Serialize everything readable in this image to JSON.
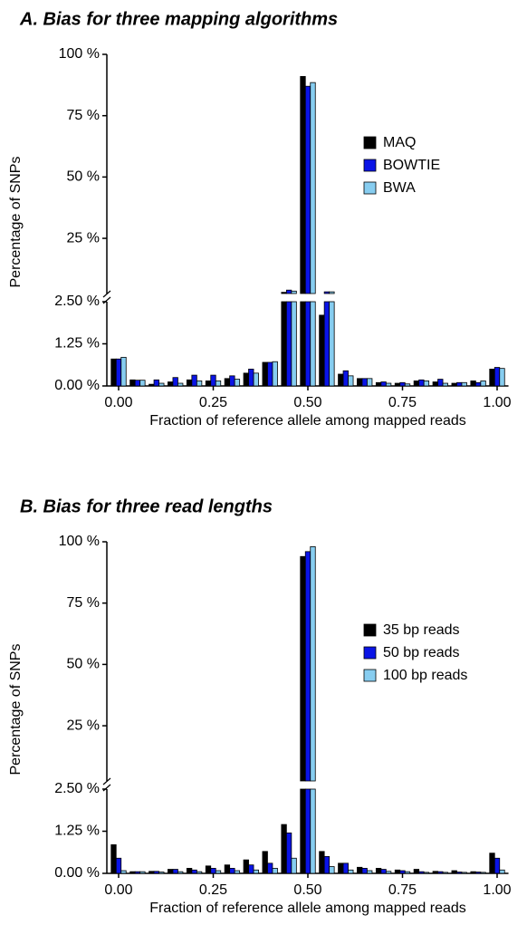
{
  "chart_data": [
    {
      "type": "bar",
      "title": "A. Bias for three mapping algorithms",
      "xlabel": "Fraction of reference allele among mapped reads",
      "ylabel": "Percentage of SNPs",
      "x": [
        0,
        0.05,
        0.1,
        0.15,
        0.2,
        0.25,
        0.3,
        0.35,
        0.4,
        0.45,
        0.5,
        0.55,
        0.6,
        0.65,
        0.7,
        0.75,
        0.8,
        0.85,
        0.9,
        0.95,
        1
      ],
      "series": [
        {
          "name": "MAQ",
          "color": "#000000",
          "values": [
            0.8,
            0.18,
            0.05,
            0.12,
            0.18,
            0.15,
            0.22,
            0.38,
            0.7,
            3.0,
            91,
            2.1,
            0.35,
            0.22,
            0.1,
            0.08,
            0.15,
            0.12,
            0.08,
            0.15,
            0.5
          ]
        },
        {
          "name": "BOWTIE",
          "color": "#0a14e6",
          "values": [
            0.8,
            0.17,
            0.18,
            0.25,
            0.32,
            0.32,
            0.3,
            0.5,
            0.7,
            3.9,
            87,
            3.2,
            0.45,
            0.22,
            0.12,
            0.1,
            0.18,
            0.2,
            0.1,
            0.1,
            0.55
          ]
        },
        {
          "name": "BWA",
          "color": "#87cdf0",
          "values": [
            0.85,
            0.17,
            0.08,
            0.08,
            0.15,
            0.15,
            0.2,
            0.38,
            0.72,
            3.5,
            88.5,
            3.2,
            0.3,
            0.22,
            0.08,
            0.06,
            0.15,
            0.08,
            0.1,
            0.15,
            0.52
          ]
        }
      ],
      "xlim": [
        -0.03,
        1.03
      ],
      "xticks": [
        {
          "value": 0,
          "label": "0.00"
        },
        {
          "value": 0.25,
          "label": "0.25"
        },
        {
          "value": 0.5,
          "label": "0.50"
        },
        {
          "value": 0.75,
          "label": "0.75"
        },
        {
          "value": 1,
          "label": "1.00"
        }
      ],
      "ylim": [
        0,
        100
      ],
      "y_break": 2.5,
      "yticks": [
        {
          "value": 0,
          "label": "0.00 %"
        },
        {
          "value": 1.25,
          "label": "1.25 %"
        },
        {
          "value": 2.5,
          "label": "2.50 %"
        },
        {
          "value": 25,
          "label": "25 %"
        },
        {
          "value": 50,
          "label": "50 %"
        },
        {
          "value": 75,
          "label": "75 %"
        },
        {
          "value": 100,
          "label": "100 %"
        }
      ],
      "legend": "right"
    },
    {
      "type": "bar",
      "title": "B. Bias for three read lengths",
      "xlabel": "Fraction of reference allele among mapped reads",
      "ylabel": "Percentage of SNPs",
      "x": [
        0,
        0.05,
        0.1,
        0.15,
        0.2,
        0.25,
        0.3,
        0.35,
        0.4,
        0.45,
        0.5,
        0.55,
        0.6,
        0.65,
        0.7,
        0.75,
        0.8,
        0.85,
        0.9,
        0.95,
        1
      ],
      "series": [
        {
          "name": "35 bp reads",
          "color": "#000000",
          "values": [
            0.85,
            0.05,
            0.06,
            0.12,
            0.15,
            0.22,
            0.25,
            0.4,
            0.65,
            1.45,
            94,
            0.65,
            0.3,
            0.18,
            0.15,
            0.1,
            0.12,
            0.06,
            0.08,
            0.05,
            0.6
          ]
        },
        {
          "name": "50 bp reads",
          "color": "#0a14e6",
          "values": [
            0.45,
            0.05,
            0.06,
            0.12,
            0.1,
            0.15,
            0.15,
            0.25,
            0.3,
            1.2,
            96,
            0.5,
            0.3,
            0.15,
            0.12,
            0.08,
            0.05,
            0.05,
            0.04,
            0.04,
            0.45
          ]
        },
        {
          "name": "100 bp reads",
          "color": "#87cdf0",
          "values": [
            0.08,
            0.05,
            0.04,
            0.05,
            0.05,
            0.08,
            0.08,
            0.1,
            0.15,
            0.45,
            98,
            0.2,
            0.1,
            0.08,
            0.06,
            0.05,
            0.03,
            0.03,
            0.03,
            0.03,
            0.1
          ]
        }
      ],
      "xlim": [
        -0.03,
        1.03
      ],
      "xticks": [
        {
          "value": 0,
          "label": "0.00"
        },
        {
          "value": 0.25,
          "label": "0.25"
        },
        {
          "value": 0.5,
          "label": "0.50"
        },
        {
          "value": 0.75,
          "label": "0.75"
        },
        {
          "value": 1,
          "label": "1.00"
        }
      ],
      "ylim": [
        0,
        100
      ],
      "y_break": 2.5,
      "yticks": [
        {
          "value": 0,
          "label": "0.00 %"
        },
        {
          "value": 1.25,
          "label": "1.25 %"
        },
        {
          "value": 2.5,
          "label": "2.50 %"
        },
        {
          "value": 25,
          "label": "25 %"
        },
        {
          "value": 50,
          "label": "50 %"
        },
        {
          "value": 75,
          "label": "75 %"
        },
        {
          "value": 100,
          "label": "100 %"
        }
      ],
      "legend": "right"
    }
  ]
}
